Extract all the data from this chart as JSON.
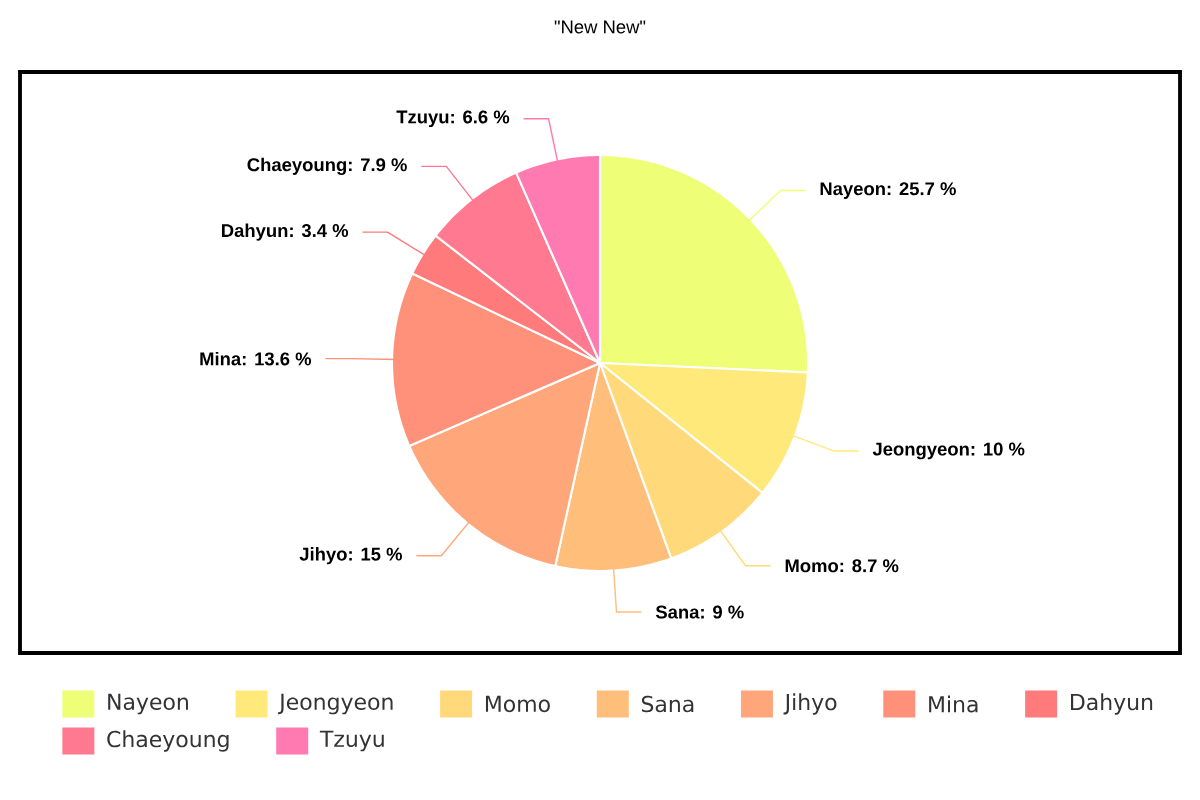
{
  "chart_data": {
    "type": "pie",
    "title": "\"New New\"",
    "categories": [
      "Nayeon",
      "Jeongyeon",
      "Momo",
      "Sana",
      "Jihyo",
      "Mina",
      "Dahyun",
      "Chaeyoung",
      "Tzuyu"
    ],
    "values": [
      25.7,
      10,
      8.7,
      9,
      15,
      13.6,
      3.4,
      7.9,
      6.6
    ],
    "value_labels": [
      "Nayeon: 25.7 %",
      "Jeongyeon: 10 %",
      "Momo: 8.7 %",
      "Sana: 9 %",
      "Jihyo: 15 %",
      "Mina: 13.6 %",
      "Dahyun: 3.4 %",
      "Chaeyoung: 7.9 %",
      "Tzuyu: 6.6 %"
    ],
    "colors": [
      "#eeff77",
      "#ffe97a",
      "#ffd97a",
      "#ffbe7a",
      "#ffa77a",
      "#ff917a",
      "#ff7a7a",
      "#ff7a90",
      "#ff7ab0"
    ],
    "legend": "bottom"
  }
}
